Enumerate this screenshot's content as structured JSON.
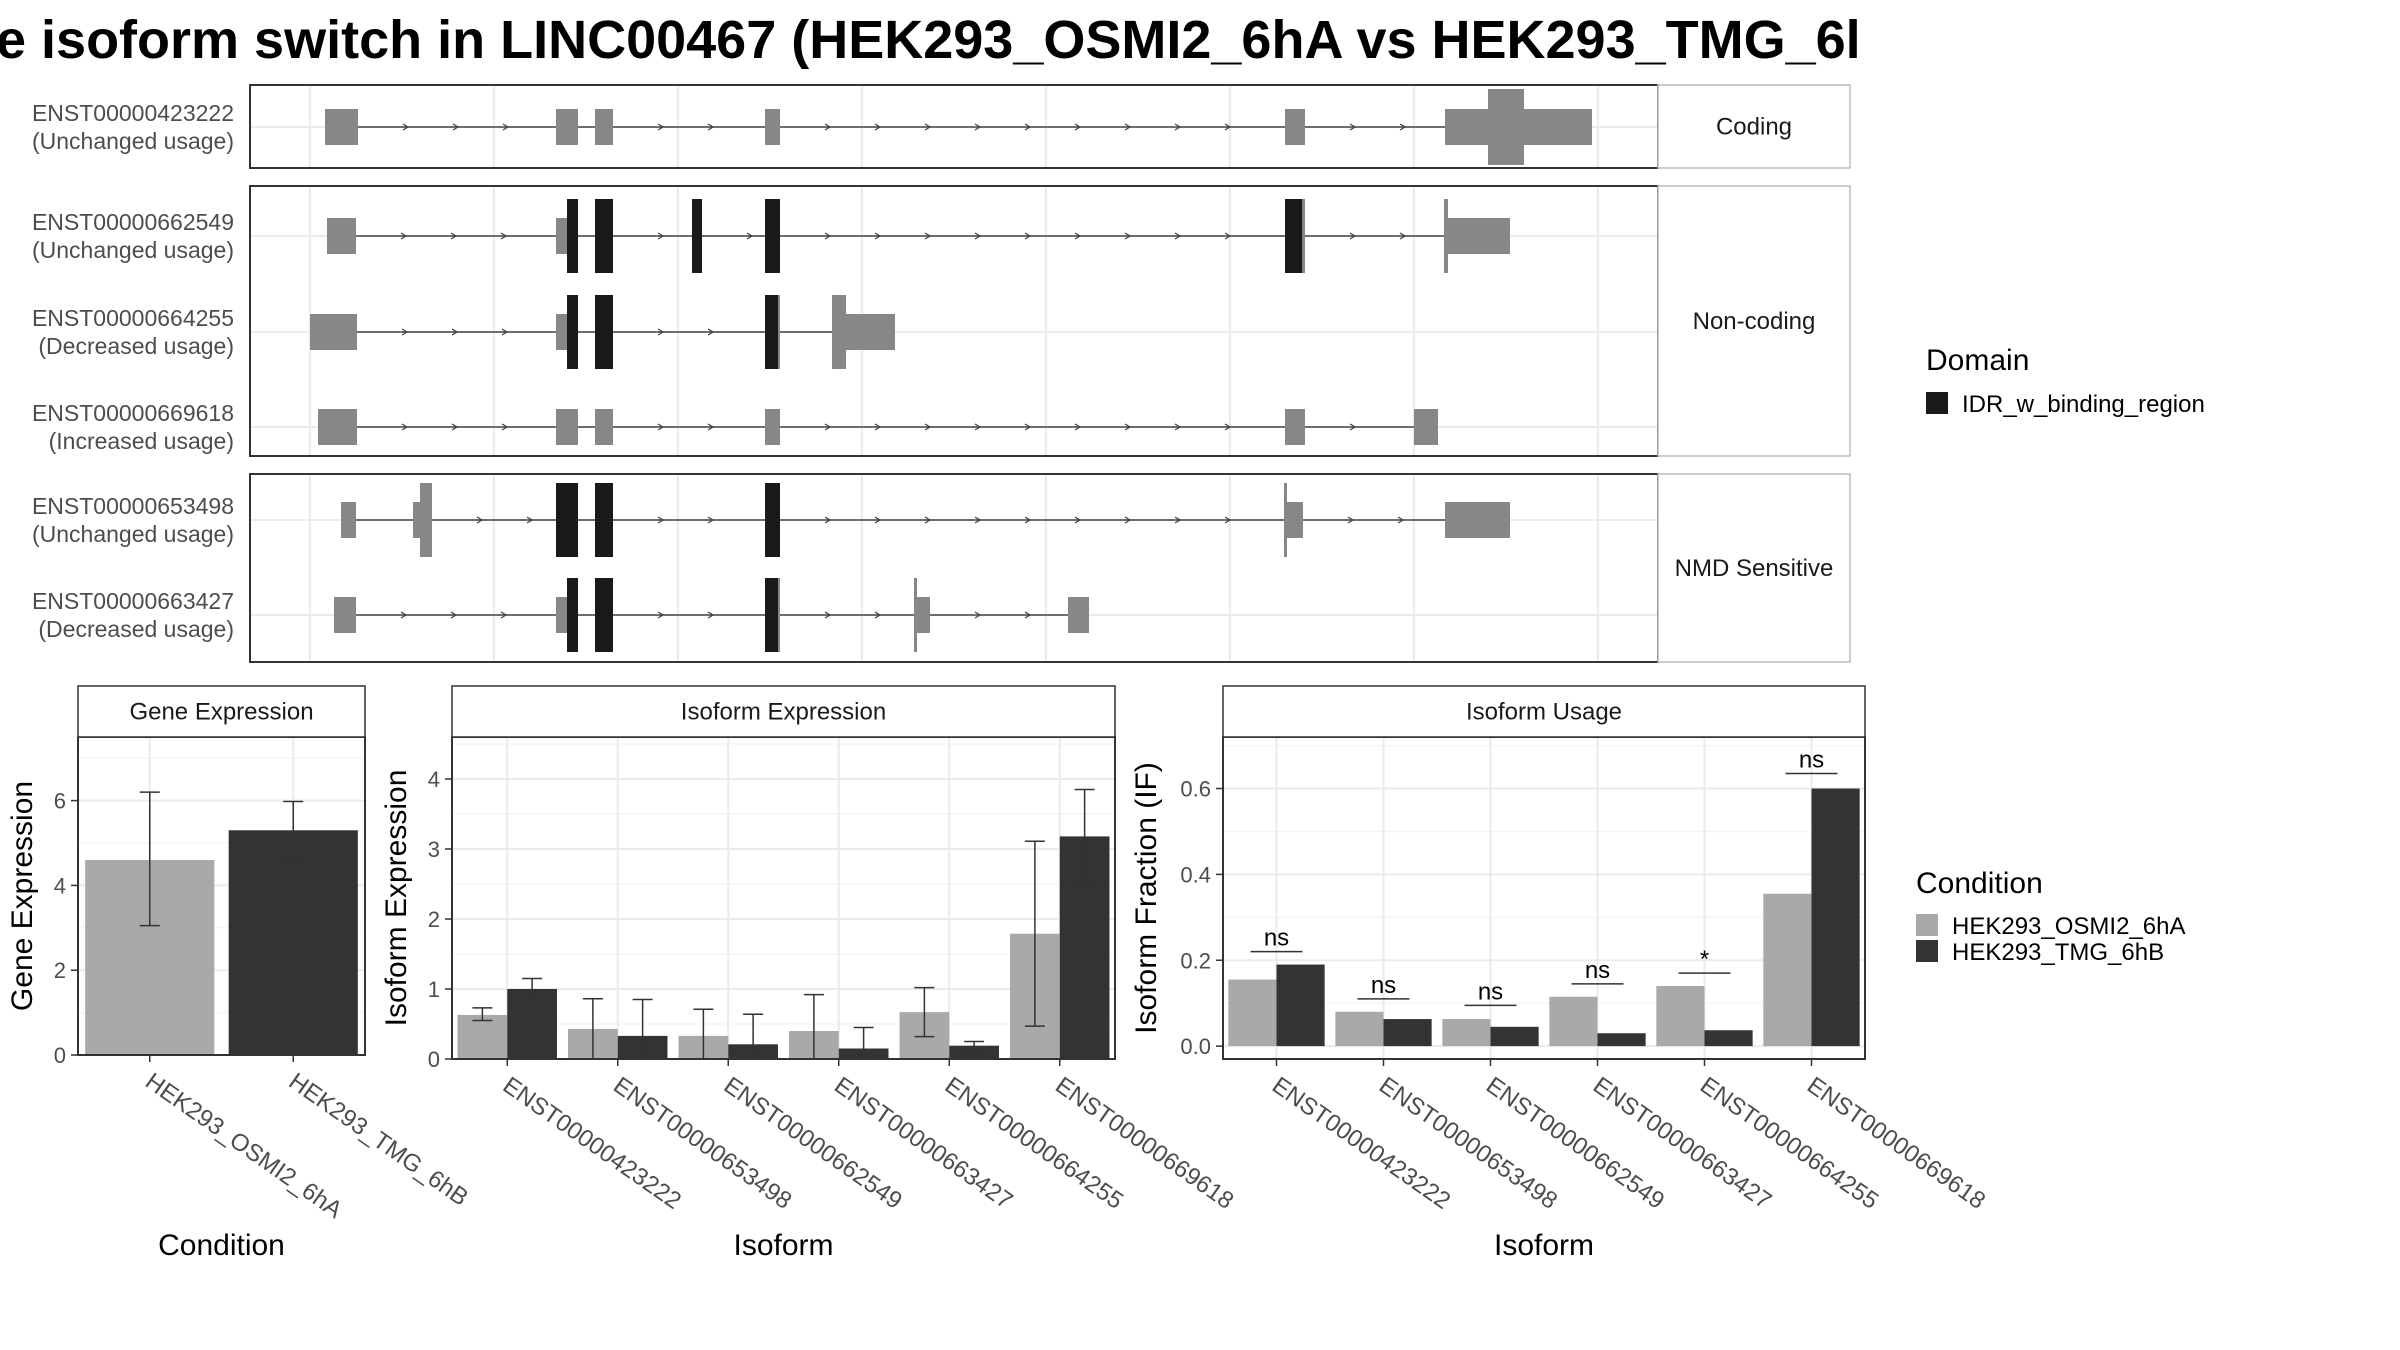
{
  "title": "e isoform switch in LINC00467 (HEK293_OSMI2_6hA vs HEK293_TMG_6l",
  "colors": {
    "light": "#A9A9A9",
    "dark": "#333333",
    "domain": "#1A1A1A",
    "exon": "#878787",
    "strip_bg": "#FFFFFF",
    "border": "#333333",
    "grid": "#EBEBEB"
  },
  "structure_panels": [
    {
      "facet": "Coding",
      "rows": [
        "ENST00000423222"
      ]
    },
    {
      "facet": "Non-coding",
      "rows": [
        "ENST00000662549",
        "ENST00000664255",
        "ENST00000669618"
      ]
    },
    {
      "facet": "NMD Sensitive",
      "rows": [
        "ENST00000653498",
        "ENST00000663427"
      ]
    }
  ],
  "isoform_labels": {
    "ENST00000423222": "(Unchanged usage)",
    "ENST00000662549": "(Unchanged usage)",
    "ENST00000664255": "(Decreased usage)",
    "ENST00000669618": "(Increased usage)",
    "ENST00000653498": "(Unchanged usage)",
    "ENST00000663427": "(Decreased usage)"
  },
  "domain_legend": {
    "title": "Domain",
    "items": [
      "IDR_w_binding_region"
    ]
  },
  "condition_legend": {
    "title": "Condition",
    "items": [
      "HEK293_OSMI2_6hA",
      "HEK293_TMG_6hB"
    ]
  },
  "chart_data": [
    {
      "type": "bar",
      "title": "Gene Expression",
      "xlabel": "Condition",
      "ylabel": "Gene Expression",
      "ylim": [
        0,
        7.5
      ],
      "yticks": [
        0,
        2,
        4,
        6
      ],
      "categories": [
        "HEK293_OSMI2_6hA",
        "HEK293_TMG_6hB"
      ],
      "values": [
        4.6,
        5.3
      ],
      "err_low": [
        3.05,
        4.65
      ],
      "err_high": [
        6.2,
        5.98
      ]
    },
    {
      "type": "bar",
      "title": "Isoform Expression",
      "xlabel": "Isoform",
      "ylabel": "Isoform Expression",
      "ylim": [
        0,
        4.6
      ],
      "yticks": [
        0,
        1,
        2,
        3,
        4
      ],
      "categories": [
        "ENST00000423222",
        "ENST00000653498",
        "ENST00000662549",
        "ENST00000663427",
        "ENST00000664255",
        "ENST00000669618"
      ],
      "series": [
        {
          "name": "HEK293_OSMI2_6hA",
          "values": [
            0.63,
            0.43,
            0.33,
            0.4,
            0.67,
            1.79
          ],
          "err_low": [
            0.55,
            0.0,
            0.0,
            0.0,
            0.32,
            0.47
          ],
          "err_high": [
            0.73,
            0.86,
            0.71,
            0.92,
            1.02,
            3.11
          ]
        },
        {
          "name": "HEK293_TMG_6hB",
          "values": [
            1.0,
            0.33,
            0.21,
            0.15,
            0.19,
            3.18
          ],
          "err_low": [
            0.84,
            0.0,
            0.0,
            0.0,
            0.13,
            2.52
          ],
          "err_high": [
            1.15,
            0.85,
            0.64,
            0.45,
            0.25,
            3.85
          ]
        }
      ]
    },
    {
      "type": "bar",
      "title": "Isoform Usage",
      "xlabel": "Isoform",
      "ylabel": "Isoform Fraction (IF)",
      "ylim": [
        -0.03,
        0.72
      ],
      "yticks": [
        0.0,
        0.2,
        0.4,
        0.6
      ],
      "ytick_labels": [
        "0.0",
        "0.2",
        "0.4",
        "0.6"
      ],
      "categories": [
        "ENST00000423222",
        "ENST00000653498",
        "ENST00000662549",
        "ENST00000663427",
        "ENST00000664255",
        "ENST00000669618"
      ],
      "series": [
        {
          "name": "HEK293_OSMI2_6hA",
          "values": [
            0.155,
            0.08,
            0.063,
            0.115,
            0.14,
            0.355
          ]
        },
        {
          "name": "HEK293_TMG_6hB",
          "values": [
            0.19,
            0.063,
            0.045,
            0.03,
            0.037,
            0.6
          ]
        }
      ],
      "significance": [
        "ns",
        "ns",
        "ns",
        "ns",
        "*",
        "ns"
      ],
      "sig_y": [
        0.22,
        0.11,
        0.095,
        0.145,
        0.17,
        0.635
      ]
    }
  ]
}
